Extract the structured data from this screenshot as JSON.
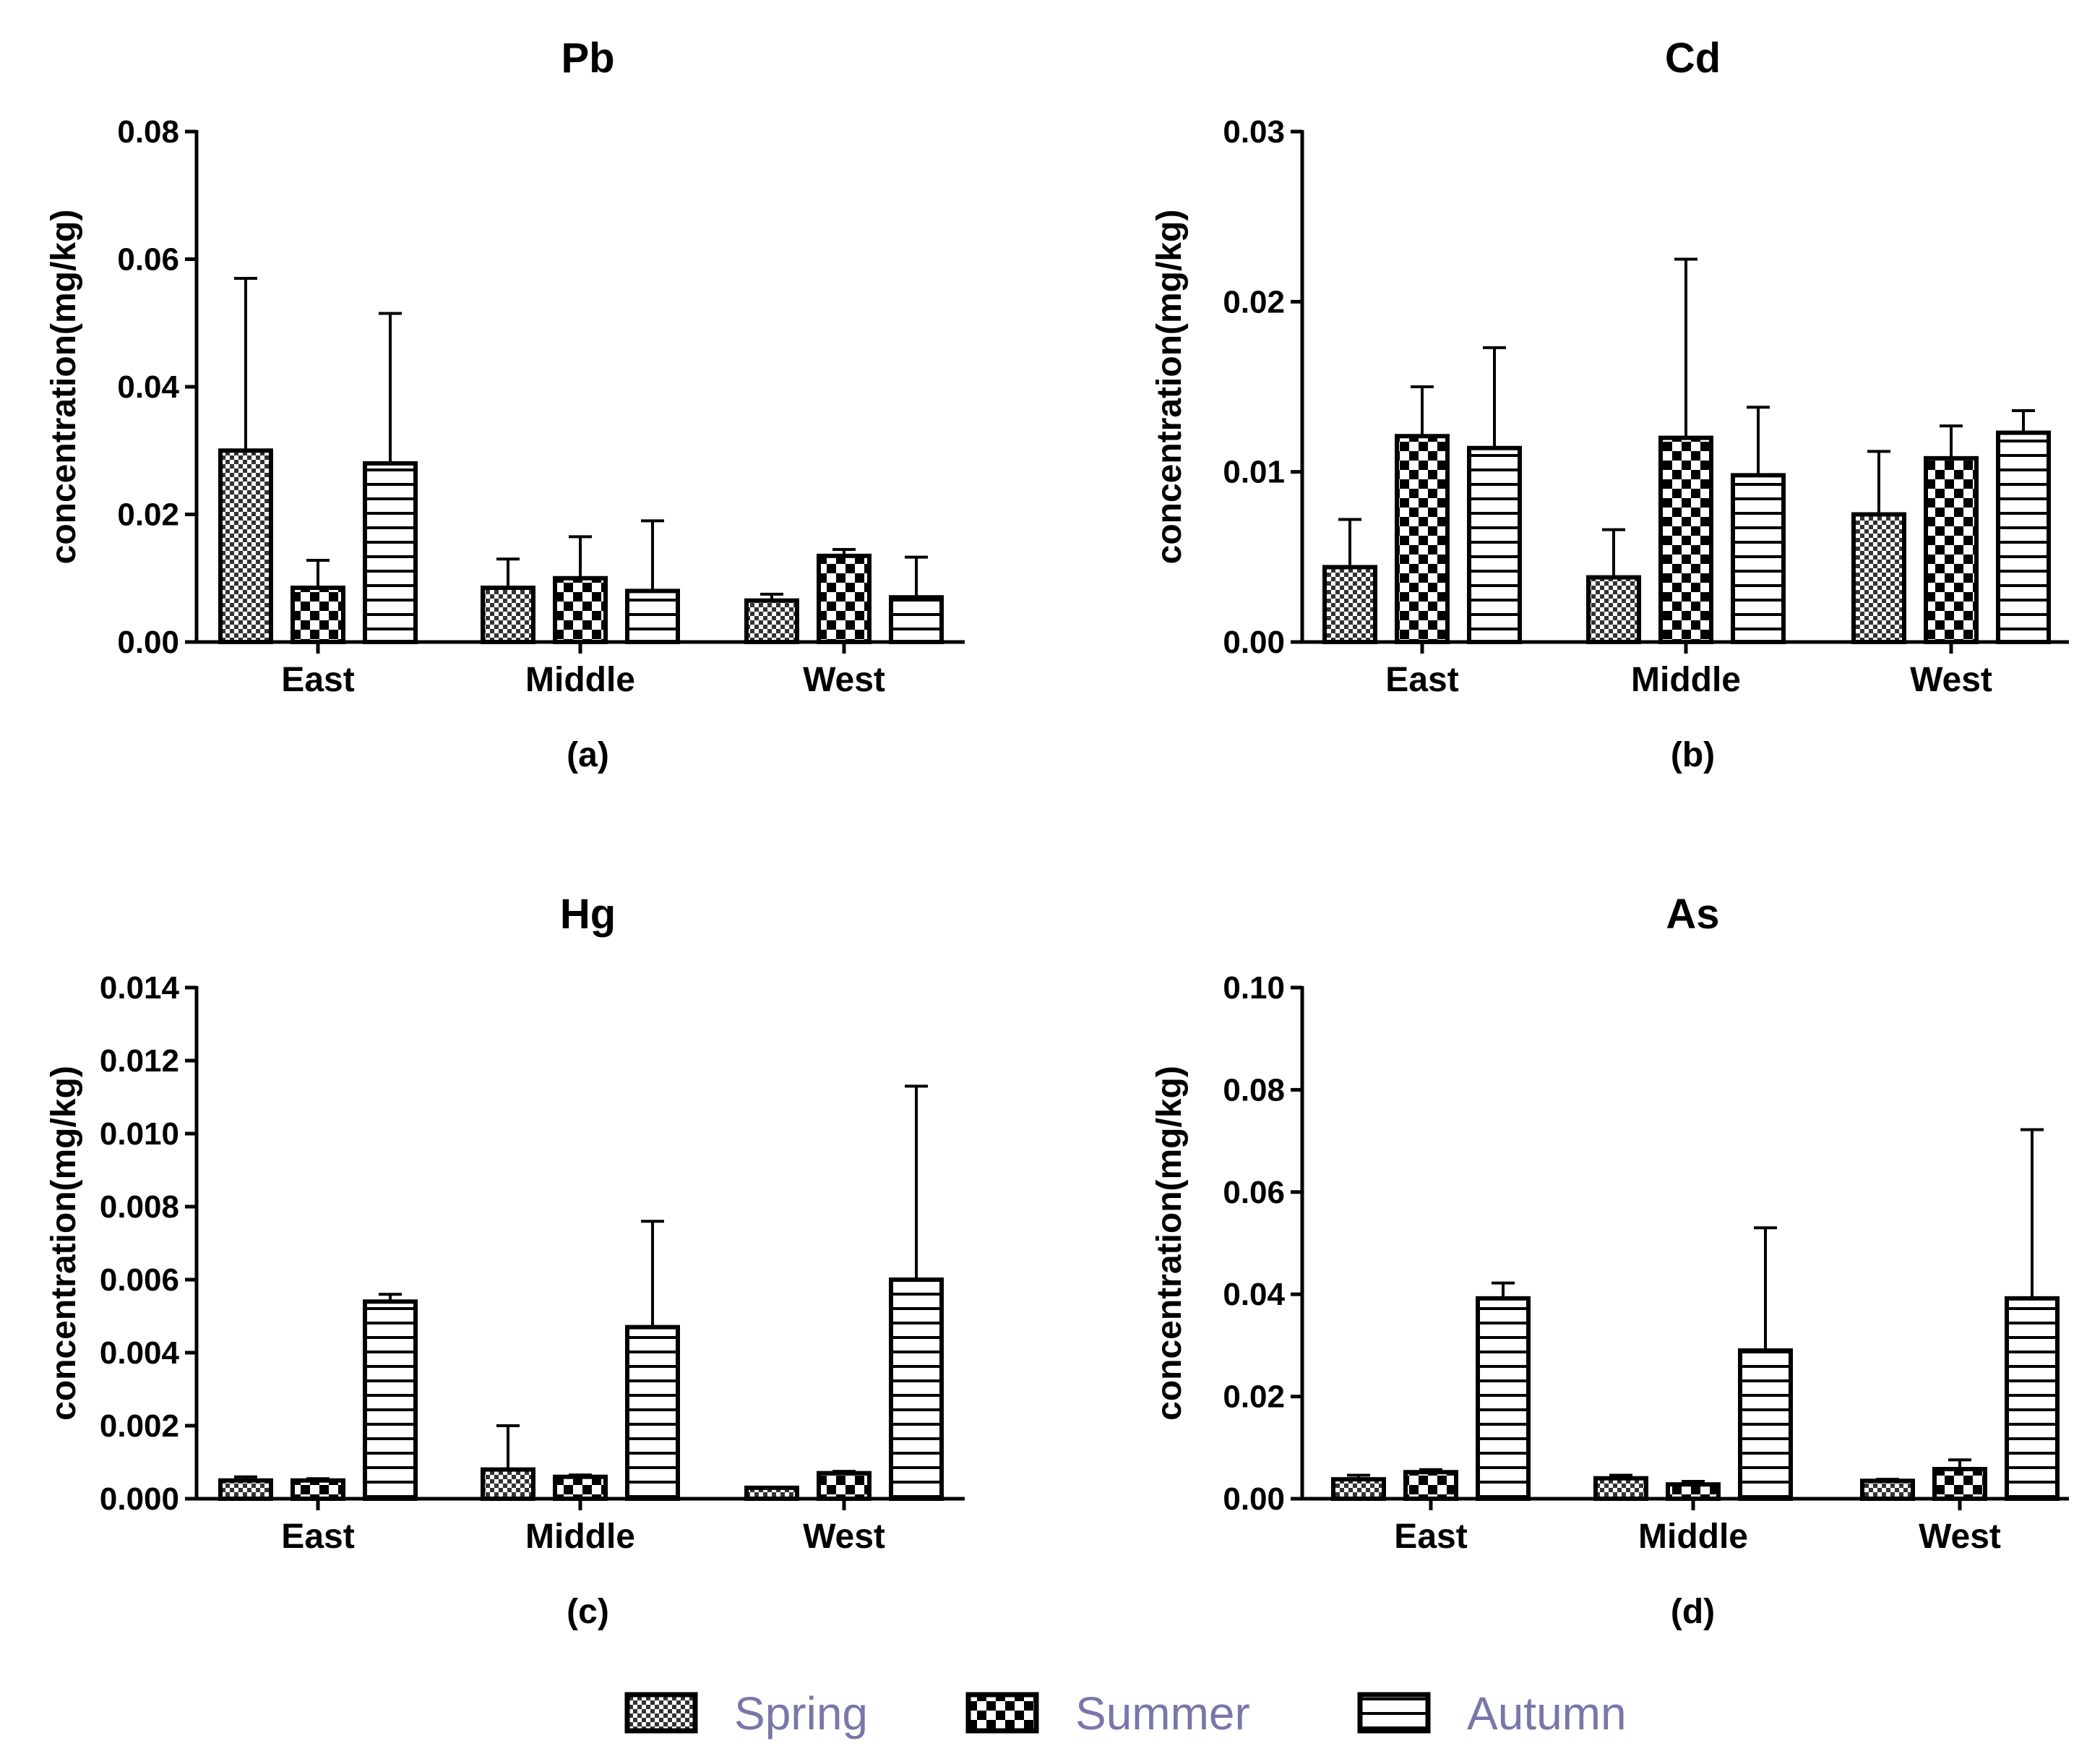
{
  "chart_data": [
    {
      "type": "bar",
      "title": "Pb",
      "ylabel": "concentration(mg/kg)",
      "caption": "(a)",
      "categories": [
        "East",
        "Middle",
        "West"
      ],
      "ylim": [
        0,
        0.08
      ],
      "yticks": [
        "0.00",
        "0.02",
        "0.04",
        "0.06",
        "0.08"
      ],
      "series": [
        {
          "name": "Spring",
          "values": [
            0.03,
            0.0085,
            0.0065
          ],
          "errors": [
            0.027,
            0.0045,
            0.001
          ]
        },
        {
          "name": "Summer",
          "values": [
            0.0085,
            0.01,
            0.0135
          ],
          "errors": [
            0.0043,
            0.0065,
            0.001
          ]
        },
        {
          "name": "Autumn",
          "values": [
            0.028,
            0.008,
            0.007
          ],
          "errors": [
            0.0235,
            0.011,
            0.0063
          ]
        }
      ]
    },
    {
      "type": "bar",
      "title": "Cd",
      "ylabel": "concentration(mg/kg)",
      "caption": "(b)",
      "categories": [
        "East",
        "Middle",
        "West"
      ],
      "ylim": [
        0,
        0.03
      ],
      "yticks": [
        "0.00",
        "0.01",
        "0.02",
        "0.03"
      ],
      "series": [
        {
          "name": "Spring",
          "values": [
            0.0044,
            0.0038,
            0.0075
          ],
          "errors": [
            0.0028,
            0.0028,
            0.0037
          ]
        },
        {
          "name": "Summer",
          "values": [
            0.0121,
            0.012,
            0.0108
          ],
          "errors": [
            0.0029,
            0.0105,
            0.0019
          ]
        },
        {
          "name": "Autumn",
          "values": [
            0.0114,
            0.0098,
            0.0123
          ],
          "errors": [
            0.0059,
            0.004,
            0.0013
          ]
        }
      ]
    },
    {
      "type": "bar",
      "title": "Hg",
      "ylabel": "concentration(mg/kg)",
      "caption": "(c)",
      "categories": [
        "East",
        "Middle",
        "West"
      ],
      "ylim": [
        0,
        0.014
      ],
      "yticks": [
        "0.000",
        "0.002",
        "0.004",
        "0.006",
        "0.008",
        "0.010",
        "0.012",
        "0.014"
      ],
      "series": [
        {
          "name": "Spring",
          "values": [
            0.0005,
            0.0008,
            0.0003
          ],
          "errors": [
            0.0001,
            0.0012,
            0.0
          ]
        },
        {
          "name": "Summer",
          "values": [
            0.0005,
            0.0006,
            0.0007
          ],
          "errors": [
            5e-05,
            5e-05,
            5e-05
          ]
        },
        {
          "name": "Autumn",
          "values": [
            0.0054,
            0.0047,
            0.006
          ],
          "errors": [
            0.0002,
            0.0029,
            0.0053
          ]
        }
      ]
    },
    {
      "type": "bar",
      "title": "As",
      "ylabel": "concentration(mg/kg)",
      "caption": "(d)",
      "categories": [
        "East",
        "Middle",
        "West"
      ],
      "ylim": [
        0,
        0.1
      ],
      "yticks": [
        "0.00",
        "0.02",
        "0.04",
        "0.06",
        "0.08",
        "0.10"
      ],
      "series": [
        {
          "name": "Spring",
          "values": [
            0.0038,
            0.004,
            0.0035
          ],
          "errors": [
            0.0008,
            0.0006,
            0.0003
          ]
        },
        {
          "name": "Summer",
          "values": [
            0.0052,
            0.0028,
            0.0058
          ],
          "errors": [
            0.0005,
            0.0006,
            0.0018
          ]
        },
        {
          "name": "Autumn",
          "values": [
            0.0392,
            0.029,
            0.0392
          ],
          "errors": [
            0.003,
            0.024,
            0.033
          ]
        }
      ]
    }
  ],
  "legend": {
    "placement": "bottom",
    "items": [
      {
        "name": "Spring",
        "pattern": "fine-checker"
      },
      {
        "name": "Summer",
        "pattern": "coarse-checker"
      },
      {
        "name": "Autumn",
        "pattern": "horizontal-stripes"
      }
    ]
  }
}
